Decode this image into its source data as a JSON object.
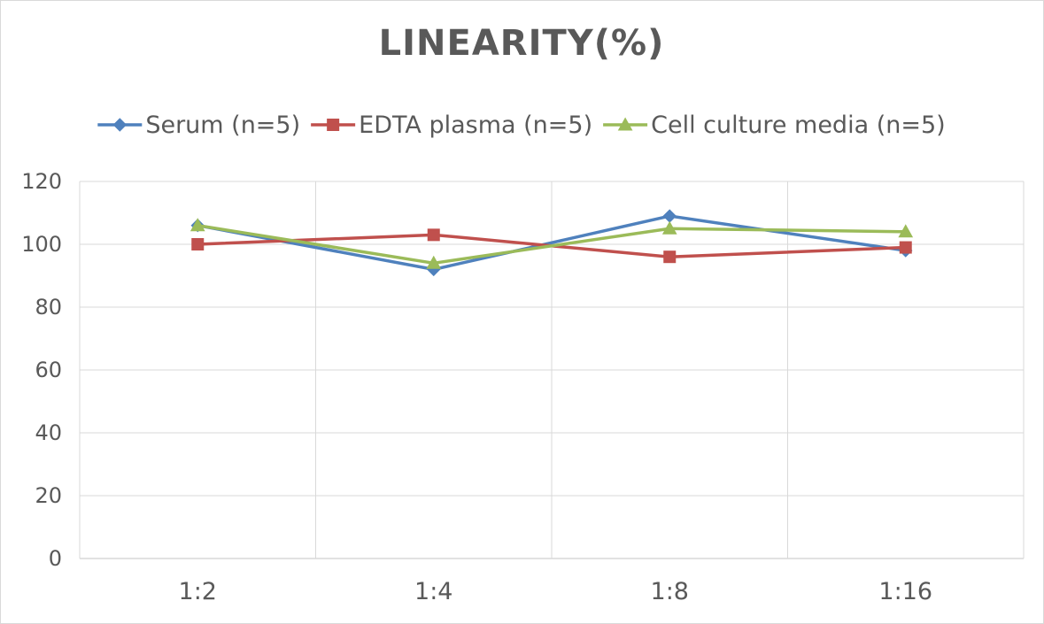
{
  "chart_data": {
    "type": "line",
    "title": "LINEARITY(%)",
    "categories": [
      "1:2",
      "1:4",
      "1:8",
      "1:16"
    ],
    "series": [
      {
        "name": "Serum (n=5)",
        "values": [
          106,
          92,
          109,
          98
        ],
        "color": "#4f81bd",
        "marker": "diamond"
      },
      {
        "name": "EDTA plasma (n=5)",
        "values": [
          100,
          103,
          96,
          99
        ],
        "color": "#c0504d",
        "marker": "square"
      },
      {
        "name": "Cell culture media (n=5)",
        "values": [
          106,
          94,
          105,
          104
        ],
        "color": "#9bbb59",
        "marker": "triangle"
      }
    ],
    "ylim": [
      0,
      120
    ],
    "yticks": [
      0,
      20,
      40,
      60,
      80,
      100,
      120
    ],
    "grid": true,
    "legend_position": "top"
  }
}
